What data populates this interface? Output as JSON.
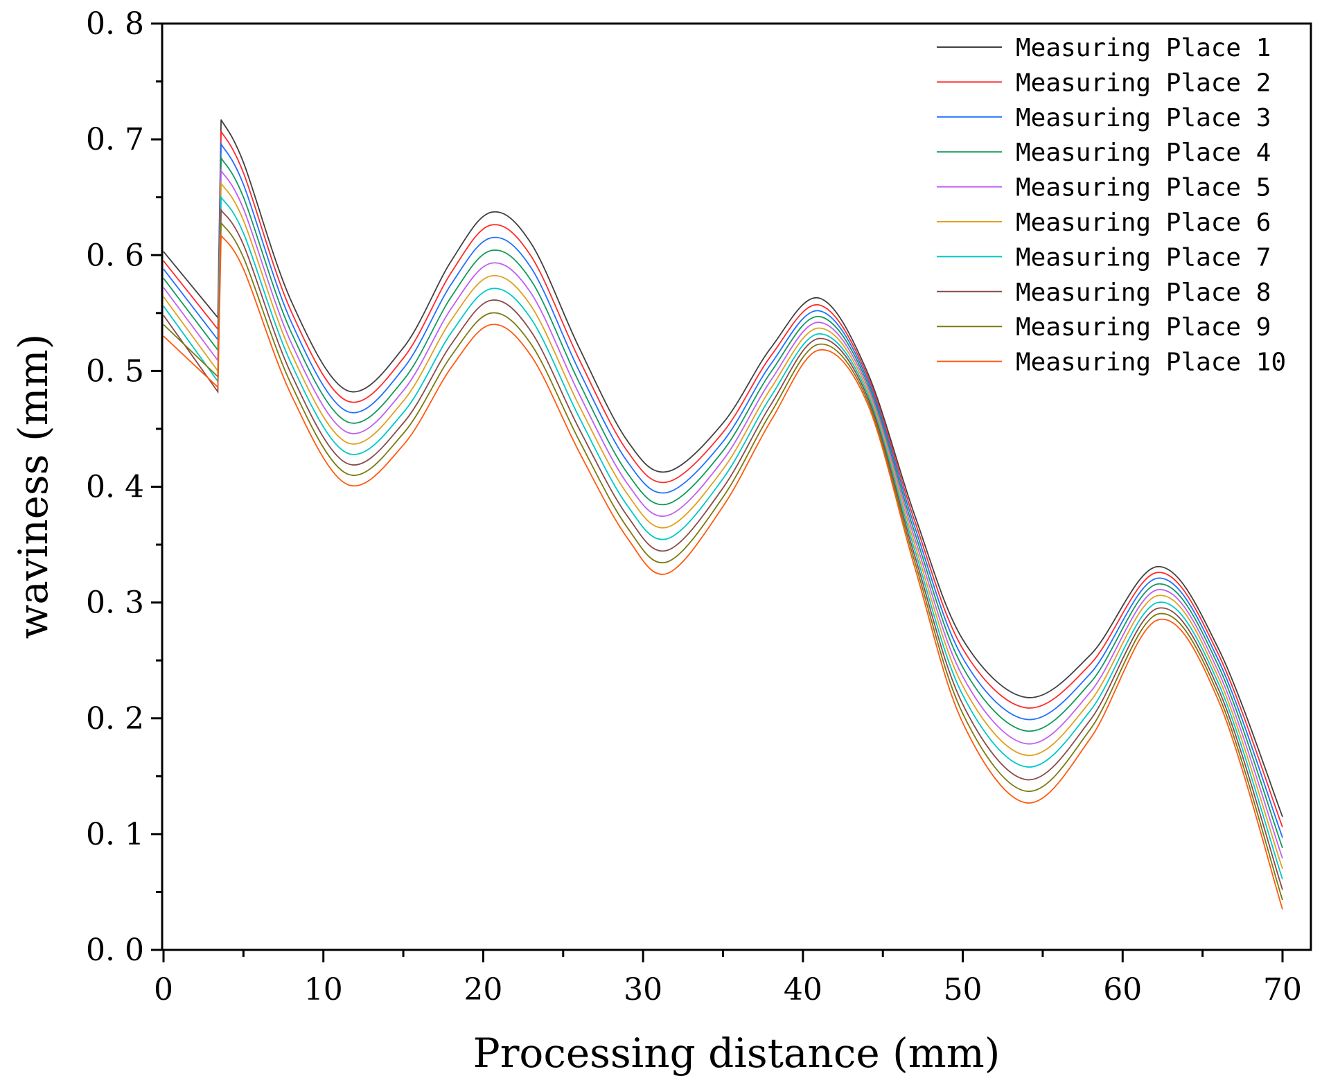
{
  "chart_data": {
    "type": "line",
    "title": "",
    "xlabel": "Processing distance (mm)",
    "ylabel": "waviness (mm)",
    "xlim": [
      0,
      70
    ],
    "ylim": [
      0.0,
      0.8
    ],
    "xticks": [
      0,
      10,
      20,
      30,
      40,
      50,
      60,
      70
    ],
    "xtick_labels": [
      "0",
      "10",
      "20",
      "30",
      "40",
      "50",
      "60",
      "70"
    ],
    "yticks": [
      0.0,
      0.1,
      0.2,
      0.3,
      0.4,
      0.5,
      0.6,
      0.7,
      0.8
    ],
    "ytick_labels": [
      "0. 0",
      "0. 1",
      "0. 2",
      "0. 3",
      "0. 4",
      "0. 5",
      "0. 6",
      "0. 7",
      "0. 8"
    ],
    "grid": false,
    "legend_position": "top-right",
    "x": [
      0,
      3.4,
      3.6,
      5,
      8,
      11.5,
      15,
      18,
      20.5,
      23,
      26,
      29,
      31.5,
      35,
      38,
      41,
      44,
      47,
      50,
      54,
      58,
      62.2,
      66,
      70
    ],
    "series": [
      {
        "name": "Measuring Place 1",
        "color": "#404040",
        "values": [
          0.603,
          0.546,
          0.717,
          0.68,
          0.56,
          0.483,
          0.52,
          0.595,
          0.637,
          0.61,
          0.52,
          0.44,
          0.413,
          0.455,
          0.52,
          0.563,
          0.5,
          0.375,
          0.268,
          0.218,
          0.255,
          0.331,
          0.26,
          0.115
        ]
      },
      {
        "name": "Measuring Place 2",
        "color": "#ff2b2b",
        "values": [
          0.595,
          0.536,
          0.707,
          0.671,
          0.551,
          0.474,
          0.511,
          0.585,
          0.626,
          0.599,
          0.51,
          0.431,
          0.404,
          0.447,
          0.513,
          0.557,
          0.497,
          0.37,
          0.26,
          0.209,
          0.247,
          0.326,
          0.255,
          0.106
        ]
      },
      {
        "name": "Measuring Place 3",
        "color": "#2070ff",
        "values": [
          0.588,
          0.527,
          0.696,
          0.661,
          0.542,
          0.465,
          0.502,
          0.575,
          0.615,
          0.589,
          0.5,
          0.422,
          0.395,
          0.439,
          0.506,
          0.552,
          0.494,
          0.365,
          0.252,
          0.199,
          0.239,
          0.321,
          0.25,
          0.097
        ]
      },
      {
        "name": "Measuring Place 4",
        "color": "#119a5a",
        "values": [
          0.58,
          0.518,
          0.684,
          0.65,
          0.533,
          0.456,
          0.492,
          0.564,
          0.604,
          0.578,
          0.49,
          0.412,
          0.385,
          0.431,
          0.499,
          0.547,
          0.491,
          0.36,
          0.244,
          0.189,
          0.231,
          0.316,
          0.245,
          0.088
        ]
      },
      {
        "name": "Measuring Place 5",
        "color": "#c060f0",
        "values": [
          0.572,
          0.509,
          0.673,
          0.64,
          0.524,
          0.447,
          0.483,
          0.554,
          0.593,
          0.567,
          0.48,
          0.403,
          0.375,
          0.423,
          0.492,
          0.542,
          0.488,
          0.355,
          0.236,
          0.178,
          0.223,
          0.311,
          0.24,
          0.079
        ]
      },
      {
        "name": "Measuring Place 6",
        "color": "#e0a020",
        "values": [
          0.564,
          0.5,
          0.662,
          0.63,
          0.515,
          0.438,
          0.474,
          0.544,
          0.582,
          0.556,
          0.47,
          0.394,
          0.365,
          0.415,
          0.485,
          0.537,
          0.485,
          0.35,
          0.228,
          0.168,
          0.215,
          0.306,
          0.235,
          0.07
        ]
      },
      {
        "name": "Measuring Place 7",
        "color": "#00c8c8",
        "values": [
          0.556,
          0.491,
          0.65,
          0.619,
          0.506,
          0.429,
          0.464,
          0.533,
          0.571,
          0.545,
          0.46,
          0.384,
          0.355,
          0.407,
          0.478,
          0.532,
          0.482,
          0.345,
          0.22,
          0.158,
          0.207,
          0.3,
          0.23,
          0.061
        ]
      },
      {
        "name": "Measuring Place 8",
        "color": "#8a4a4a",
        "values": [
          0.548,
          0.482,
          0.639,
          0.609,
          0.497,
          0.42,
          0.455,
          0.523,
          0.561,
          0.534,
          0.45,
          0.375,
          0.345,
          0.399,
          0.471,
          0.528,
          0.479,
          0.34,
          0.212,
          0.147,
          0.199,
          0.295,
          0.225,
          0.052
        ]
      },
      {
        "name": "Measuring Place 9",
        "color": "#7a7a10",
        "values": [
          0.54,
          0.495,
          0.628,
          0.598,
          0.488,
          0.411,
          0.446,
          0.513,
          0.55,
          0.523,
          0.44,
          0.365,
          0.335,
          0.391,
          0.464,
          0.523,
          0.476,
          0.335,
          0.204,
          0.137,
          0.191,
          0.29,
          0.22,
          0.043
        ]
      },
      {
        "name": "Measuring Place 10",
        "color": "#ff5a10",
        "values": [
          0.53,
          0.486,
          0.617,
          0.588,
          0.479,
          0.402,
          0.436,
          0.503,
          0.54,
          0.513,
          0.43,
          0.356,
          0.325,
          0.383,
          0.457,
          0.518,
          0.473,
          0.33,
          0.196,
          0.127,
          0.183,
          0.285,
          0.215,
          0.035
        ]
      }
    ]
  }
}
